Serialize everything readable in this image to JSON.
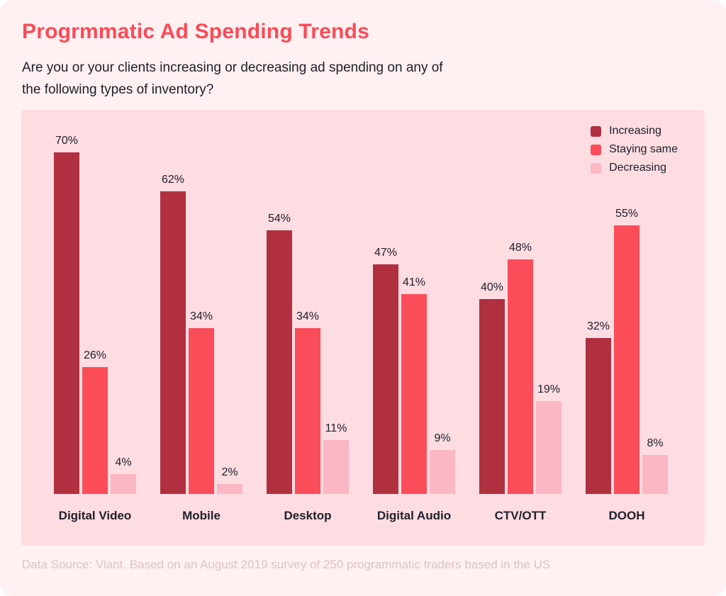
{
  "page": {
    "title": "Progrmmatic Ad Spending Trends",
    "subtitle": "Are you or your clients increasing or decreasing ad spending on any of the following types of inventory?",
    "footer": "Data Source: Viant. Based on an August 2019 survey of 250 programmatic traders based in the US"
  },
  "colors": {
    "page_bg": "#FFF0F1",
    "panel_bg": "#FDDCE2",
    "title_accent": "#FB4B57",
    "text_dark": "#21212B",
    "footer_text": "#DCC3C7",
    "increasing": "#B13040",
    "staying_same": "#FB4D59",
    "decreasing": "#FBB7C3"
  },
  "chart_data": {
    "type": "bar",
    "categories": [
      "Digital Video",
      "Mobile",
      "Desktop",
      "Digital Audio",
      "CTV/OTT",
      "DOOH"
    ],
    "series": [
      {
        "name": "Increasing",
        "color_key": "increasing",
        "values": [
          70,
          62,
          54,
          47,
          40,
          32
        ]
      },
      {
        "name": "Staying same",
        "color_key": "staying_same",
        "values": [
          26,
          34,
          34,
          41,
          48,
          55
        ]
      },
      {
        "name": "Decreasing",
        "color_key": "decreasing",
        "values": [
          4,
          2,
          11,
          9,
          19,
          8
        ]
      }
    ],
    "value_suffix": "%",
    "ylim": [
      0,
      75
    ],
    "grid": false,
    "legend_position": "top-right",
    "y_axis_shown": false
  }
}
